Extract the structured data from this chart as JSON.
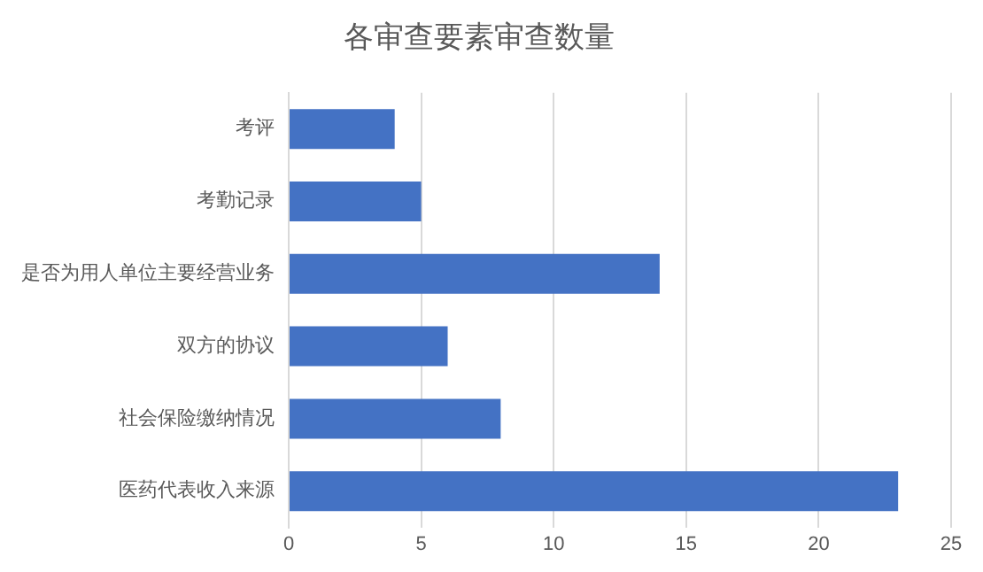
{
  "chart_data": {
    "type": "bar",
    "orientation": "horizontal",
    "title": "各审查要素审查数量",
    "categories": [
      "考评",
      "考勤记录",
      "是否为用人单位主要经营业务",
      "双方的协议",
      "社会保险缴纳情况",
      "医药代表收入来源"
    ],
    "values": [
      4,
      5,
      14,
      6,
      8,
      23
    ],
    "color": "#4472c4",
    "xlim": [
      0,
      25
    ],
    "xticks": [
      0,
      5,
      10,
      15,
      20,
      25
    ],
    "grid": "x",
    "legend": false
  }
}
